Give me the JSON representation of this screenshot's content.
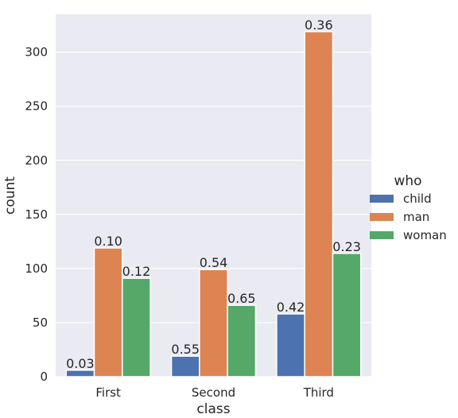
{
  "chart_data": {
    "type": "bar",
    "xlabel": "class",
    "ylabel": "count",
    "categories": [
      "First",
      "Second",
      "Third"
    ],
    "ylim": [
      0,
      335
    ],
    "yticks": [
      0,
      50,
      100,
      150,
      200,
      250,
      300
    ],
    "grid": true,
    "legend": {
      "title": "who",
      "placement": "right"
    },
    "series": [
      {
        "name": "child",
        "color": "#4c72b0",
        "values": [
          6,
          19,
          58
        ],
        "labels": [
          "0.03",
          "0.55",
          "0.42"
        ]
      },
      {
        "name": "man",
        "color": "#dd8452",
        "values": [
          119,
          99,
          319
        ],
        "labels": [
          "0.10",
          "0.54",
          "0.36"
        ]
      },
      {
        "name": "woman",
        "color": "#55a868",
        "values": [
          91,
          66,
          114
        ],
        "labels": [
          "0.12",
          "0.65",
          "0.23"
        ]
      }
    ]
  }
}
